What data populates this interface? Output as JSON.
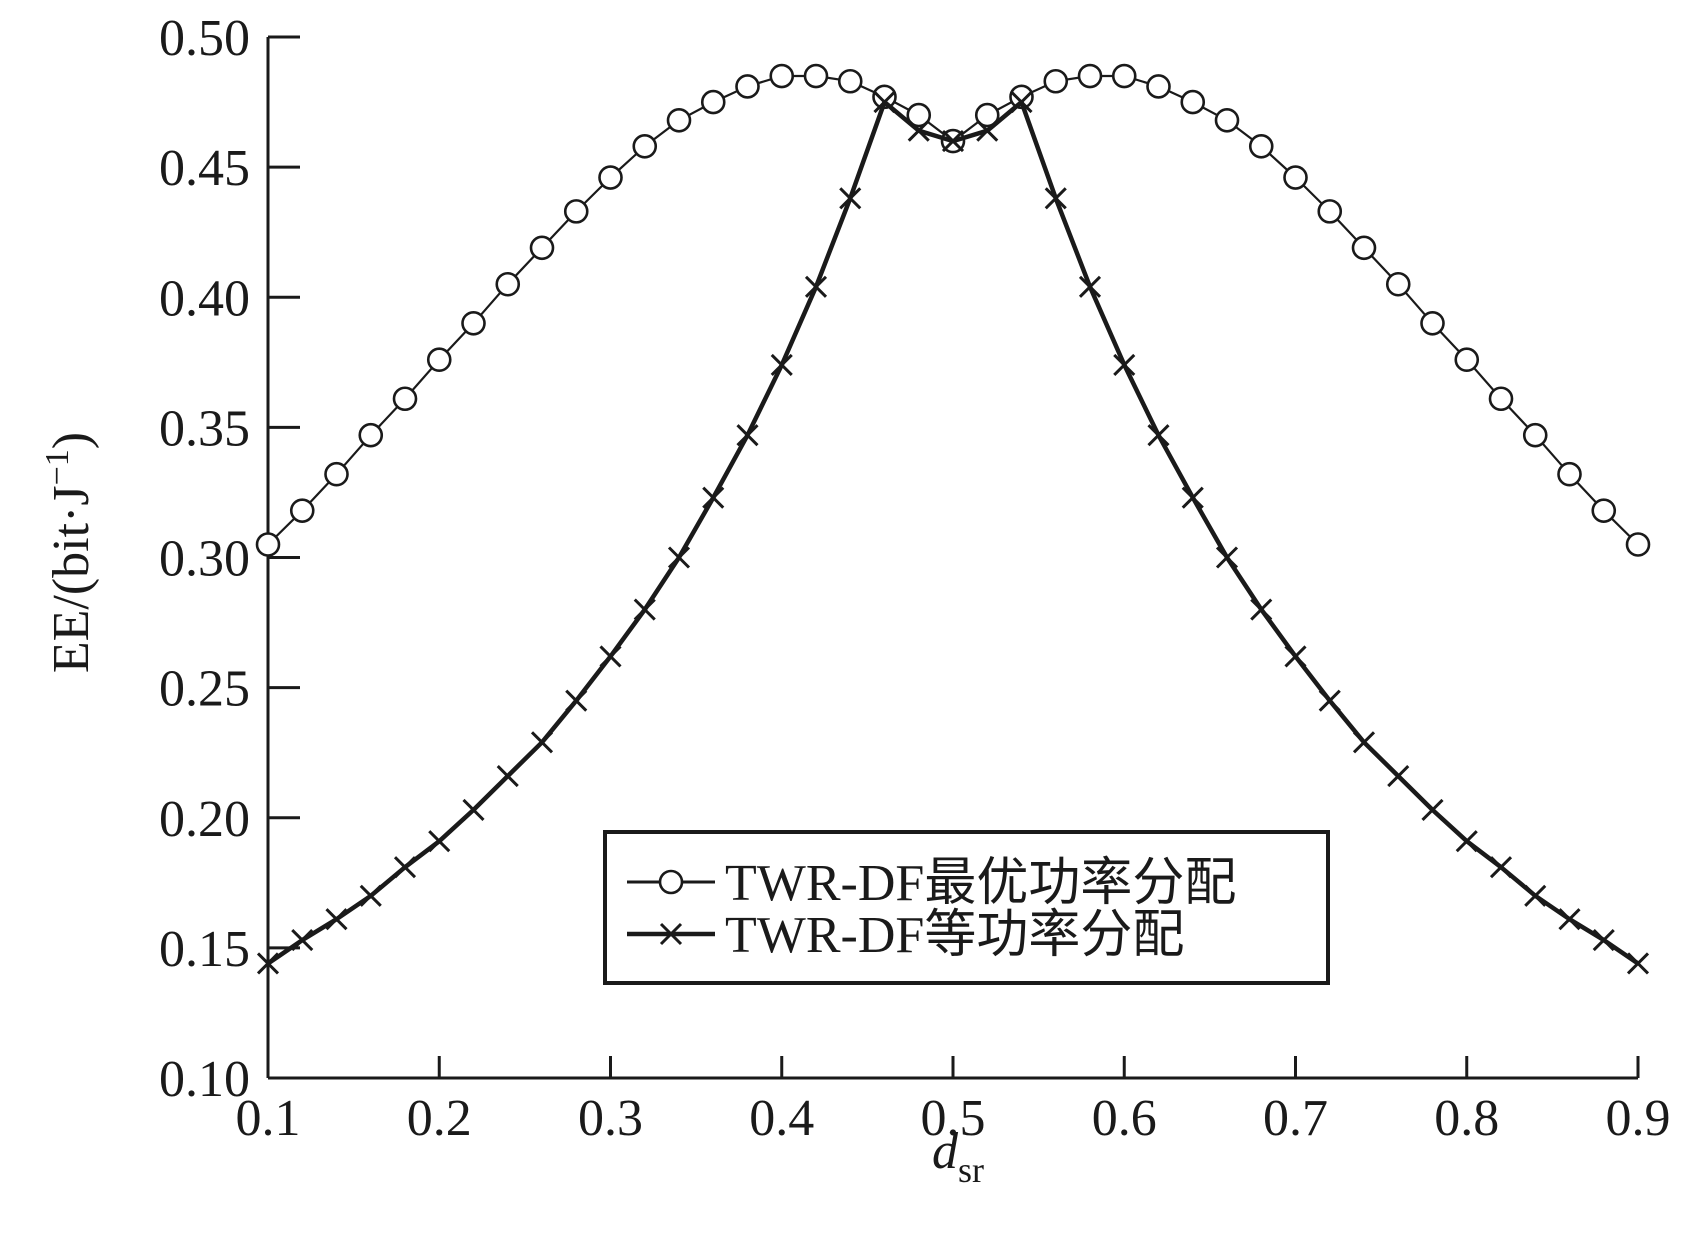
{
  "chart_data": {
    "type": "line",
    "xlabel": "d",
    "xlabel_sub": "sr",
    "ylabel": "EE/(bit·J",
    "ylabel_sup": "−1",
    "ylabel_close": ")",
    "xlim": [
      0.1,
      0.9
    ],
    "ylim": [
      0.1,
      0.5
    ],
    "x_ticks": [
      0.1,
      0.2,
      0.3,
      0.4,
      0.5,
      0.6,
      0.7,
      0.8,
      0.9
    ],
    "x_tick_labels": [
      "0.1",
      "0.2",
      "0.3",
      "0.4",
      "0.5",
      "0.6",
      "0.7",
      "0.8",
      "0.9"
    ],
    "y_ticks": [
      0.1,
      0.15,
      0.2,
      0.25,
      0.3,
      0.35,
      0.4,
      0.45,
      0.5
    ],
    "y_tick_labels": [
      "0.10",
      "0.15",
      "0.20",
      "0.25",
      "0.30",
      "0.35",
      "0.40",
      "0.45",
      "0.50"
    ],
    "grid": false,
    "legend_position": "bottom-center",
    "colors": {
      "line": "#1a1a1a",
      "background": "#ffffff"
    },
    "x": [
      0.1,
      0.12,
      0.14,
      0.16,
      0.18,
      0.2,
      0.22,
      0.24,
      0.26,
      0.28,
      0.3,
      0.32,
      0.34,
      0.36,
      0.38,
      0.4,
      0.42,
      0.44,
      0.46,
      0.48,
      0.5,
      0.52,
      0.54,
      0.56,
      0.58,
      0.6,
      0.62,
      0.64,
      0.66,
      0.68,
      0.7,
      0.72,
      0.74,
      0.76,
      0.78,
      0.8,
      0.82,
      0.84,
      0.86,
      0.88,
      0.9
    ],
    "series": [
      {
        "name": "TWR-DF最优功率分配",
        "marker": "circle",
        "line_width": "thin",
        "values": [
          0.305,
          0.318,
          0.332,
          0.347,
          0.361,
          0.376,
          0.39,
          0.405,
          0.419,
          0.433,
          0.446,
          0.458,
          0.468,
          0.475,
          0.481,
          0.485,
          0.485,
          0.483,
          0.477,
          0.47,
          0.46,
          0.47,
          0.477,
          0.483,
          0.485,
          0.485,
          0.481,
          0.475,
          0.468,
          0.458,
          0.446,
          0.433,
          0.419,
          0.405,
          0.39,
          0.376,
          0.361,
          0.347,
          0.332,
          0.318,
          0.305
        ]
      },
      {
        "name": "TWR-DF等功率分配",
        "marker": "x",
        "line_width": "thick",
        "values": [
          0.144,
          0.153,
          0.161,
          0.17,
          0.181,
          0.191,
          0.203,
          0.216,
          0.229,
          0.245,
          0.262,
          0.28,
          0.3,
          0.323,
          0.347,
          0.374,
          0.404,
          0.438,
          0.475,
          0.464,
          0.46,
          0.464,
          0.475,
          0.438,
          0.404,
          0.374,
          0.347,
          0.323,
          0.3,
          0.28,
          0.262,
          0.245,
          0.229,
          0.216,
          0.203,
          0.191,
          0.181,
          0.17,
          0.161,
          0.153,
          0.144
        ]
      }
    ]
  }
}
